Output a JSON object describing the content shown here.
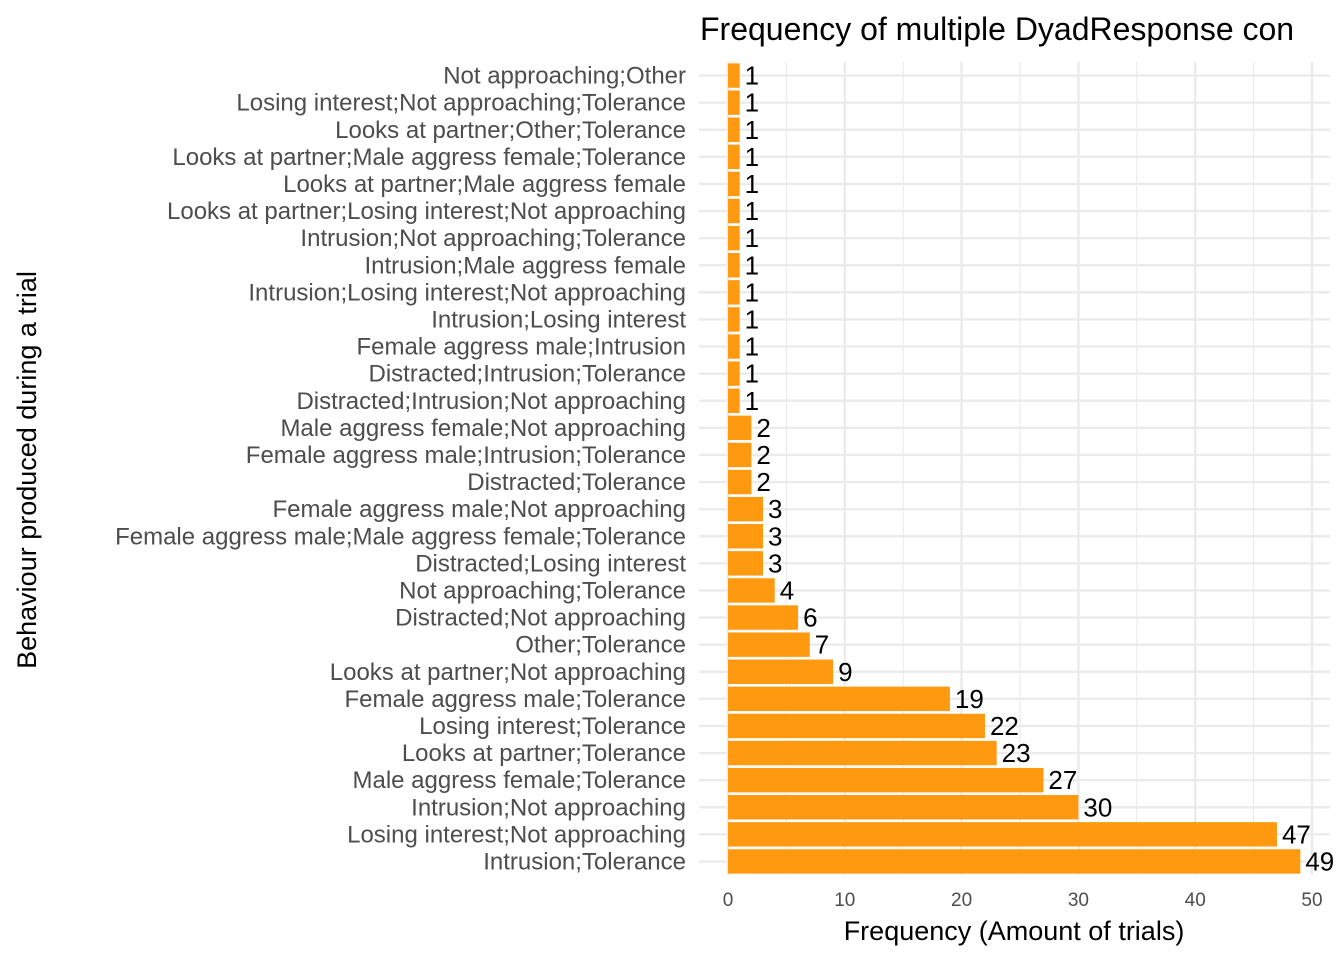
{
  "chart_data": {
    "type": "bar",
    "orientation": "horizontal",
    "title": "Frequency of multiple DyadResponse con",
    "xlabel": "Frequency (Amount of trials)",
    "ylabel": "Behaviour produced during a trial",
    "xlim": [
      0,
      52
    ],
    "xticks": [
      0,
      10,
      20,
      30,
      40,
      50
    ],
    "grid": true,
    "legend": "none",
    "bar_color": "#FF9910",
    "categories": [
      "Not approaching;Other",
      "Losing interest;Not approaching;Tolerance",
      "Looks at partner;Other;Tolerance",
      "Looks at partner;Male aggress female;Tolerance",
      "Looks at partner;Male aggress female",
      "Looks at partner;Losing interest;Not approaching",
      "Intrusion;Not approaching;Tolerance",
      "Intrusion;Male aggress female",
      "Intrusion;Losing interest;Not approaching",
      "Intrusion;Losing interest",
      "Female aggress male;Intrusion",
      "Distracted;Intrusion;Tolerance",
      "Distracted;Intrusion;Not approaching",
      "Male aggress female;Not approaching",
      "Female aggress male;Intrusion;Tolerance",
      "Distracted;Tolerance",
      "Female aggress male;Not approaching",
      "Female aggress male;Male aggress female;Tolerance",
      "Distracted;Losing interest",
      "Not approaching;Tolerance",
      "Distracted;Not approaching",
      "Other;Tolerance",
      "Looks at partner;Not approaching",
      "Female aggress male;Tolerance",
      "Losing interest;Tolerance",
      "Looks at partner;Tolerance",
      "Male aggress female;Tolerance",
      "Intrusion;Not approaching",
      "Losing interest;Not approaching",
      "Intrusion;Tolerance"
    ],
    "values": [
      1,
      1,
      1,
      1,
      1,
      1,
      1,
      1,
      1,
      1,
      1,
      1,
      1,
      2,
      2,
      2,
      3,
      3,
      3,
      4,
      6,
      7,
      9,
      19,
      22,
      23,
      27,
      30,
      47,
      49
    ]
  }
}
